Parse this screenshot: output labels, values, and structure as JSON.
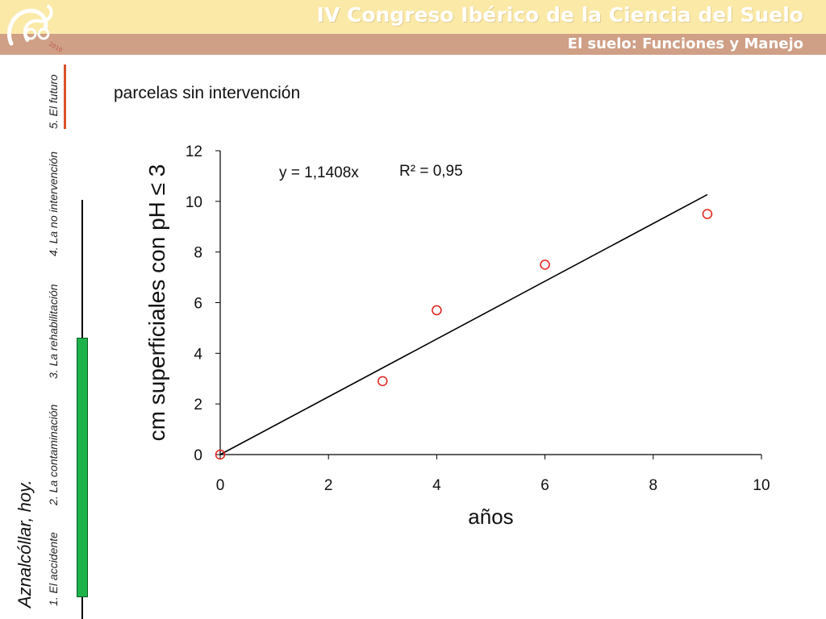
{
  "header": {
    "title": "IV Congreso Ibérico de la Ciencia del Suelo",
    "subtitle": "El suelo: Funciones y Manejo"
  },
  "sidebar": {
    "main_label": "Aznalcóllar, hoy.",
    "nav_items": [
      {
        "label": "1. El accidente"
      },
      {
        "label": "2. La contaminación"
      },
      {
        "label": "3. La rehabilitación"
      },
      {
        "label": "4. La no intervención"
      },
      {
        "label": "5. El futuro"
      }
    ]
  },
  "slide": {
    "heading": "parcelas sin intervención"
  },
  "colors": {
    "header_top": "#fbe9a8",
    "header_bottom": "#cf9f86",
    "progress_green": "#1db34a",
    "future_marker": "#d9502a",
    "marker_red": "#e3201b"
  },
  "chart_data": {
    "type": "scatter",
    "xlabel": "años",
    "ylabel": "cm superficiales con pH ≤ 3",
    "xlim": [
      0,
      10
    ],
    "ylim": [
      0,
      12
    ],
    "xticks": [
      0,
      2,
      4,
      6,
      8,
      10
    ],
    "yticks": [
      0,
      2,
      4,
      6,
      8,
      10,
      12
    ],
    "points": [
      {
        "x": 0,
        "y": 0
      },
      {
        "x": 3,
        "y": 2.9
      },
      {
        "x": 4,
        "y": 5.7
      },
      {
        "x": 6,
        "y": 7.5
      },
      {
        "x": 9,
        "y": 9.5
      }
    ],
    "trendline": {
      "slope": 1.1408,
      "x_range": [
        0,
        9
      ],
      "equation": "y = 1,1408x",
      "r2": "R² = 0,95"
    }
  }
}
